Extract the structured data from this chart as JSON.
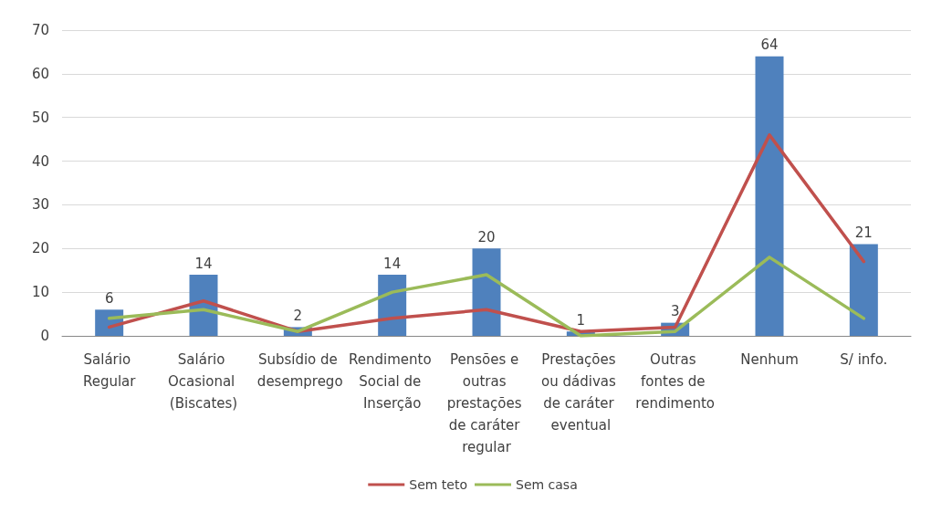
{
  "chart_data": {
    "type": "bar",
    "categories": [
      "Salário Regular",
      "Salário Ocasional (Biscates)",
      "Subsídio de desemprego",
      "Rendimento Social de Inserção",
      "Pensões e outras prestações de caráter regular",
      "Prestações ou dádivas de caráter eventual",
      "Outras fontes de rendimento",
      "Nenhum",
      "S/ info."
    ],
    "series": [
      {
        "color": "#4f81bd",
        "values": [
          6,
          14,
          2,
          14,
          20,
          1,
          3,
          64,
          21
        ],
        "value_labels": [
          "6",
          "14",
          "2",
          "14",
          "20",
          "1",
          "3",
          "64",
          "21"
        ]
      },
      {
        "type": "line",
        "name": "Sem teto",
        "color": "#c0504d",
        "values": [
          2,
          8,
          1,
          4,
          6,
          1,
          2,
          46,
          17
        ]
      },
      {
        "type": "line",
        "name": "Sem casa",
        "color": "#9bbb59",
        "values": [
          4,
          6,
          1,
          10,
          14,
          0,
          1,
          18,
          4
        ]
      }
    ],
    "ylim": [
      0,
      70
    ],
    "yticks": [
      0,
      10,
      20,
      30,
      40,
      50,
      60,
      70
    ],
    "grid": "y",
    "legend": "bottom",
    "marker": "none",
    "line_style": "solid"
  }
}
